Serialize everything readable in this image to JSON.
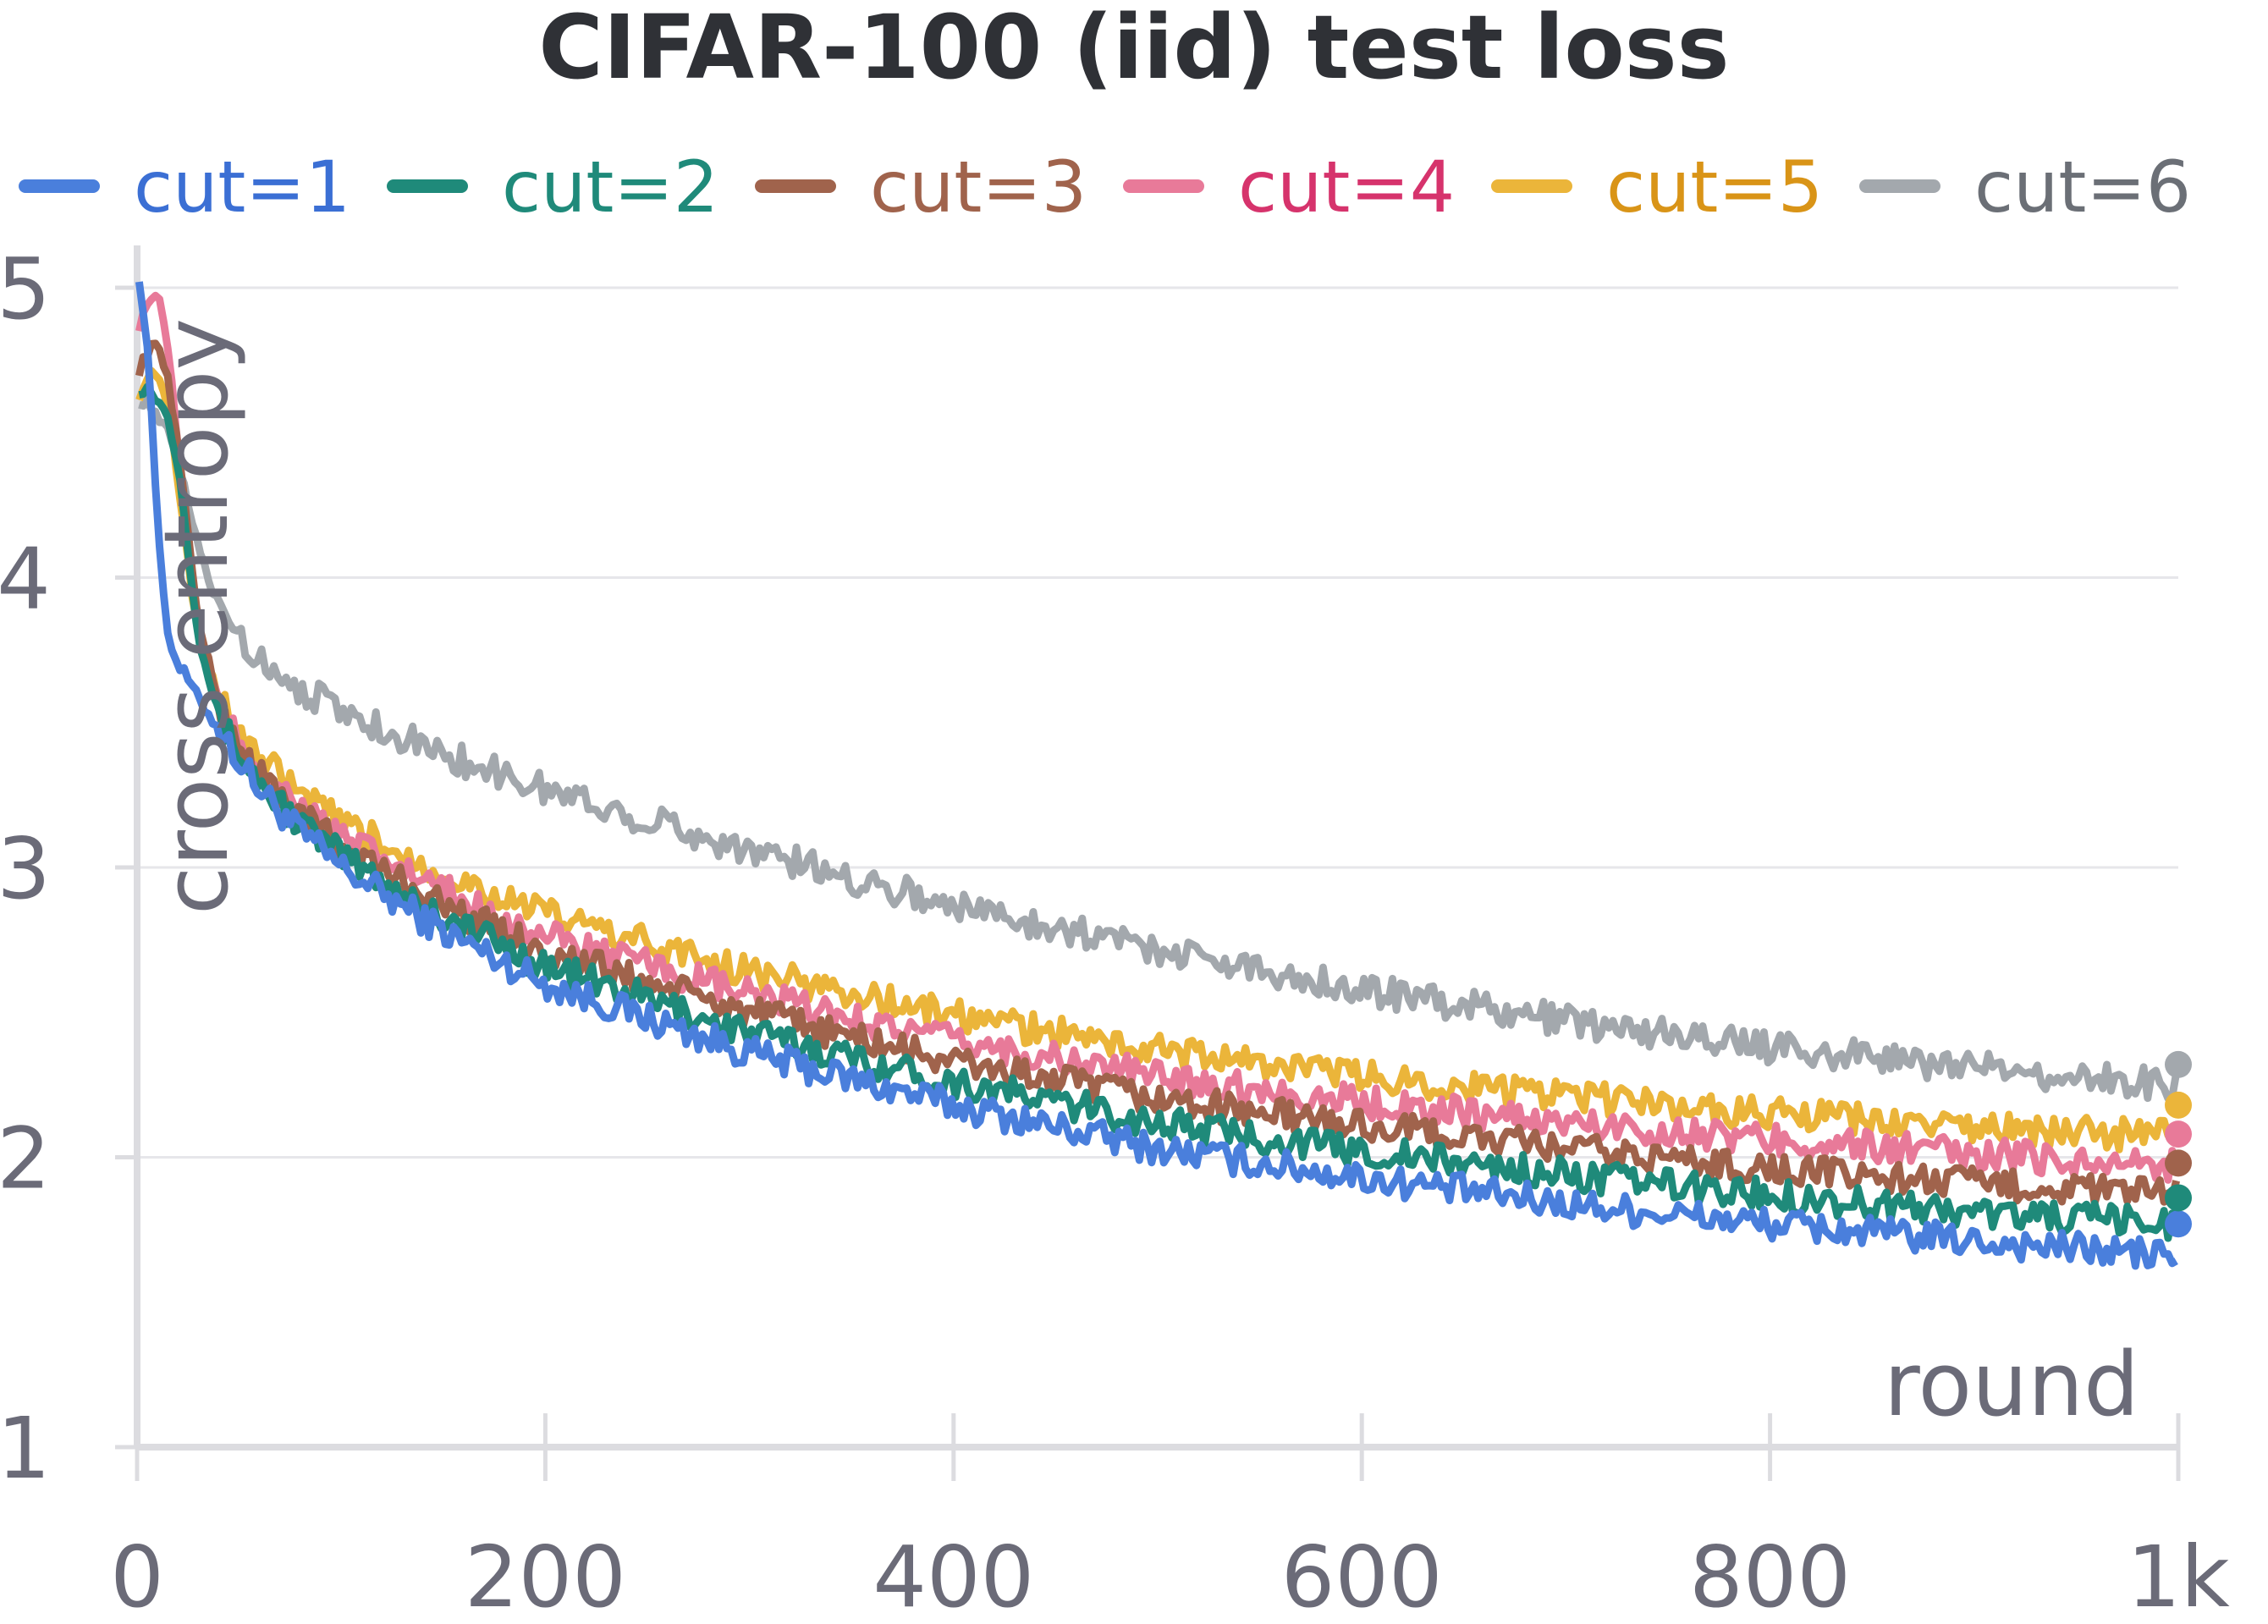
{
  "chart_data": {
    "type": "line",
    "title": "CIFAR-100 (iid) test loss",
    "xlabel": "round",
    "ylabel": "cross entropy",
    "xlim": [
      0,
      1000
    ],
    "ylim": [
      1,
      5
    ],
    "x_ticks": [
      0,
      200,
      400,
      600,
      800,
      1000
    ],
    "x_tick_labels": [
      "0",
      "200",
      "400",
      "600",
      "800",
      "1k"
    ],
    "y_ticks": [
      1,
      2,
      3,
      4,
      5
    ],
    "y_tick_labels": [
      "1",
      "2",
      "3",
      "4",
      "5"
    ],
    "grid": true,
    "legend_position": "top",
    "x": [
      0,
      5,
      10,
      15,
      20,
      25,
      30,
      40,
      50,
      60,
      80,
      100,
      150,
      200,
      300,
      400,
      500,
      600,
      700,
      800,
      900,
      1000
    ],
    "series": [
      {
        "name": "cut=1",
        "color": "#4a7fdc",
        "text_color": "#3b6fd4",
        "values": [
          5.1,
          4.8,
          4.2,
          3.8,
          3.7,
          3.65,
          3.58,
          3.48,
          3.37,
          3.27,
          3.12,
          3.0,
          2.78,
          2.6,
          2.36,
          2.18,
          2.03,
          1.93,
          1.84,
          1.77,
          1.71,
          1.66
        ]
      },
      {
        "name": "cut=2",
        "color": "#1f8a7a",
        "text_color": "#1f8a7a",
        "values": [
          4.65,
          4.65,
          4.62,
          4.55,
          4.4,
          4.1,
          3.8,
          3.52,
          3.39,
          3.29,
          3.15,
          3.04,
          2.83,
          2.66,
          2.43,
          2.26,
          2.12,
          2.02,
          1.94,
          1.87,
          1.81,
          1.77
        ]
      },
      {
        "name": "cut=3",
        "color": "#a0634c",
        "text_color": "#a0634c",
        "values": [
          4.7,
          4.78,
          4.8,
          4.7,
          4.45,
          4.15,
          3.85,
          3.56,
          3.42,
          3.32,
          3.18,
          3.07,
          2.87,
          2.71,
          2.5,
          2.33,
          2.2,
          2.11,
          2.03,
          1.96,
          1.91,
          1.87
        ]
      },
      {
        "name": "cut=4",
        "color": "#e87a99",
        "text_color": "#d6336c",
        "values": [
          4.85,
          4.95,
          4.98,
          4.8,
          4.45,
          4.1,
          3.82,
          3.56,
          3.43,
          3.34,
          3.21,
          3.1,
          2.92,
          2.76,
          2.56,
          2.4,
          2.28,
          2.19,
          2.12,
          2.06,
          2.01,
          1.97
        ]
      },
      {
        "name": "cut=5",
        "color": "#ebb53a",
        "text_color": "#d99417",
        "values": [
          4.62,
          4.68,
          4.72,
          4.6,
          4.35,
          4.05,
          3.8,
          3.58,
          3.47,
          3.38,
          3.25,
          3.15,
          2.98,
          2.84,
          2.64,
          2.49,
          2.37,
          2.28,
          2.21,
          2.15,
          2.1,
          2.07
        ]
      },
      {
        "name": "cut=6",
        "color": "#a3a8ad",
        "text_color": "#6b6f76",
        "values": [
          4.62,
          4.6,
          4.55,
          4.5,
          4.4,
          4.25,
          4.1,
          3.9,
          3.8,
          3.72,
          3.62,
          3.54,
          3.39,
          3.27,
          3.06,
          2.87,
          2.72,
          2.58,
          2.47,
          2.38,
          2.31,
          2.25
        ]
      }
    ],
    "end_markers": [
      1.77,
      1.86,
      1.98,
      2.08,
      2.18,
      2.32
    ]
  }
}
